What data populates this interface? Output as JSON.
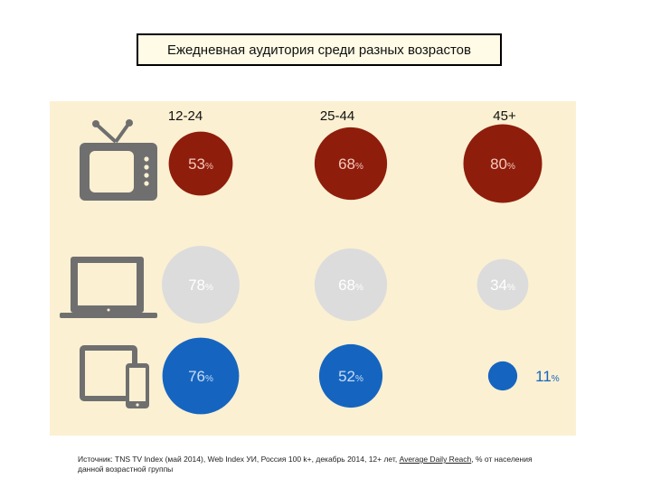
{
  "chart_data": {
    "type": "bubble",
    "title": "Ежедневная аудитория среди разных возрастов",
    "categories": [
      "12-24",
      "25-44",
      "45+"
    ],
    "value_suffix": "%",
    "series": [
      {
        "device": "tv-icon",
        "color": "#8f1d0c",
        "label_color": "#f3c9bd",
        "values": [
          53,
          68,
          80
        ]
      },
      {
        "device": "laptop-icon",
        "color": "#dcdcdc",
        "label_color": "#ffffff",
        "values": [
          78,
          68,
          34
        ]
      },
      {
        "device": "tablet-smartphone-icon",
        "color": "#1565c0",
        "label_color": "#c9dcf3",
        "values": [
          76,
          52,
          11
        ]
      }
    ]
  },
  "source": {
    "text_before": "Источник: TNS TV Index (май 2014), Web Index УИ, Россия 100 k+, декабрь 2014, 12+ лет, ",
    "underlined": "Average Daily Reach",
    "text_after": ", % от населения данной возрастной группы"
  }
}
